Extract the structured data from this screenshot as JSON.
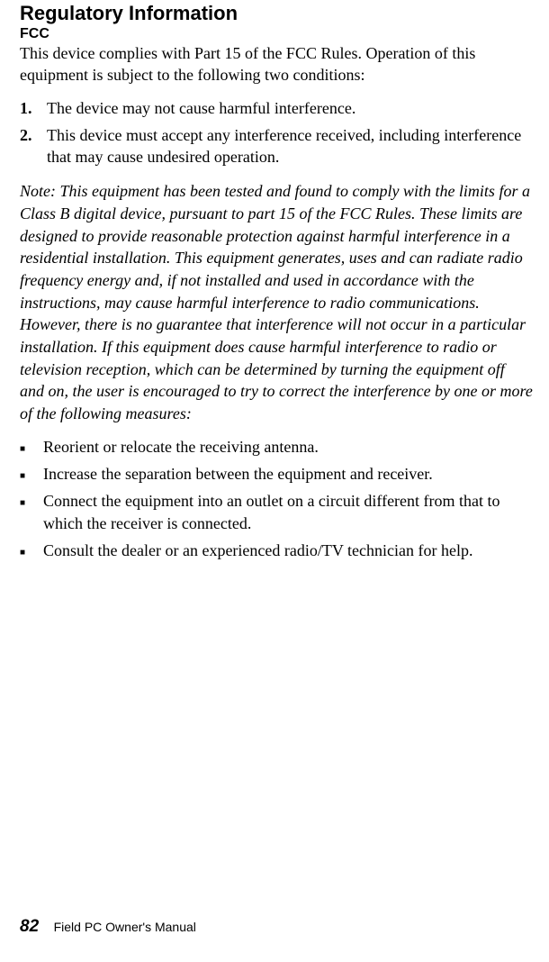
{
  "heading": "Regulatory Information",
  "subheading": "FCC",
  "intro": "This device complies with Part 15 of the FCC Rules. Operation of this equipment is subject to the following two conditions:",
  "ordered": {
    "item1_num": "1.",
    "item1_text": "The device may not cause harmful interference.",
    "item2_num": "2.",
    "item2_text": "This device must accept any interference received, including interference that may cause undesired operation."
  },
  "note": "Note: This equipment has been tested and found to comply with the limits for a Class B digital device, pursuant to part 15 of the FCC Rules. These limits are designed to provide reasonable protection against harmful interference in a residential installation. This equipment generates, uses and can radiate radio frequency energy and, if not installed and used in accordance with the instructions, may cause harmful interference to radio communications. However, there is no guarantee that interference will not occur in a particular installation. If this equipment does cause harmful interference to radio or television reception, which can be determined by turning the equipment off and on, the user is encouraged to try to correct the interference by one or more of the following measures:",
  "bullets": {
    "b1": "Reorient or relocate the receiving antenna.",
    "b2": "Increase the separation between the equipment and receiver.",
    "b3": "Connect the equipment into an outlet on a circuit different from that to which the receiver is connected.",
    "b4": "Consult the dealer or an experienced radio/TV technician for help."
  },
  "footer": {
    "page": "82",
    "title": "Field PC Owner's Manual"
  },
  "bullet_char": "■"
}
